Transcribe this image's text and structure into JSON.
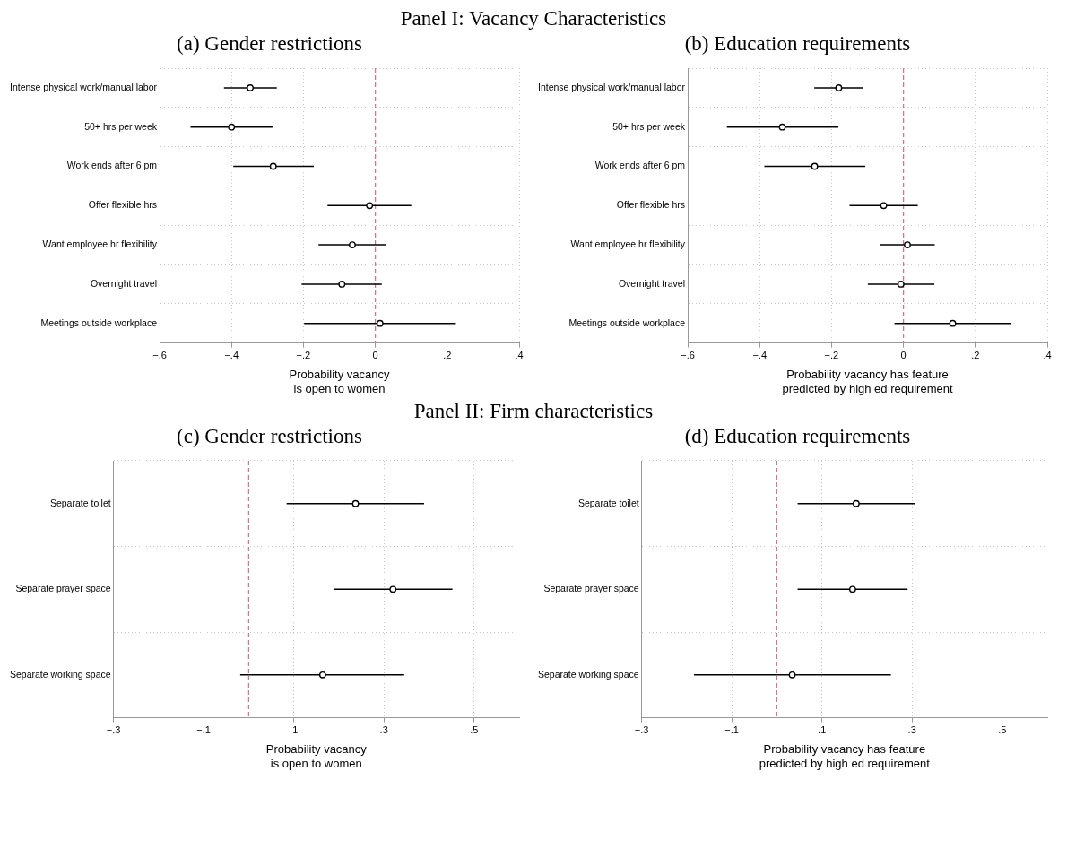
{
  "chart_data": [
    {
      "type": "scatter",
      "title": "Panel I: Vacancy Characteristics",
      "subtitle": "(a) Gender restrictions",
      "orientation": "horizontal",
      "xlabel": "Probability vacancy\nis open to women",
      "categories": [
        "Intense physical work/manual labor",
        "50+ hrs per week",
        "Work ends after 6 pm",
        "Offer flexible hrs",
        "Want employee hr flexibility",
        "Overnight travel",
        "Meetings outside workplace"
      ],
      "values": [
        -0.348,
        -0.4,
        -0.284,
        -0.016,
        -0.064,
        -0.093,
        0.013
      ],
      "errors": [
        [
          -0.421,
          -0.274
        ],
        [
          -0.514,
          -0.286
        ],
        [
          -0.395,
          -0.171
        ],
        [
          -0.133,
          0.1
        ],
        [
          -0.158,
          0.029
        ],
        [
          -0.205,
          0.018
        ],
        [
          -0.198,
          0.224
        ]
      ],
      "color": "#000000",
      "marker": "circle",
      "grid": true,
      "xlim": [
        -0.6,
        0.4
      ],
      "xticks": [
        {
          "value": -0.6,
          "label": "−.6"
        },
        {
          "value": -0.4,
          "label": "−.4"
        },
        {
          "value": -0.2,
          "label": "−.2"
        },
        0,
        {
          "value": 0.2,
          "label": ".2"
        },
        {
          "value": 0.4,
          "label": ".4"
        }
      ],
      "ref_lines": [
        {
          "axis": "x",
          "value": 0,
          "color": "#c9789c",
          "line_style": "dashed"
        }
      ]
    },
    {
      "type": "scatter",
      "title": "(b) Education requirements",
      "orientation": "horizontal",
      "xlabel": "Probability vacancy has feature\npredicted by high ed requirement",
      "categories": [
        "Intense physical work/manual labor",
        "50+ hrs per week",
        "Work ends after 6 pm",
        "Offer flexible hrs",
        "Want employee hr flexibility",
        "Overnight travel",
        "Meetings outside workplace"
      ],
      "values": [
        -0.18,
        -0.337,
        -0.247,
        -0.055,
        0.011,
        -0.007,
        0.137
      ],
      "errors": [
        [
          -0.248,
          -0.113
        ],
        [
          -0.491,
          -0.181
        ],
        [
          -0.387,
          -0.106
        ],
        [
          -0.15,
          0.04
        ],
        [
          -0.064,
          0.087
        ],
        [
          -0.099,
          0.086
        ],
        [
          -0.025,
          0.298
        ]
      ],
      "color": "#000000",
      "marker": "circle",
      "grid": true,
      "xlim": [
        -0.6,
        0.4
      ],
      "xticks": [
        {
          "value": -0.6,
          "label": "−.6"
        },
        {
          "value": -0.4,
          "label": "−.4"
        },
        {
          "value": -0.2,
          "label": "−.2"
        },
        0,
        {
          "value": 0.2,
          "label": ".2"
        },
        {
          "value": 0.4,
          "label": ".4"
        }
      ],
      "ref_lines": [
        {
          "axis": "x",
          "value": 0,
          "color": "#c9789c",
          "line_style": "dashed"
        }
      ]
    },
    {
      "type": "scatter",
      "title": "Panel II: Firm characteristics",
      "subtitle": "(c) Gender restrictions",
      "orientation": "horizontal",
      "xlabel": "Probability vacancy\nis open to women",
      "categories": [
        "Separate toilet",
        "Separate prayer space",
        "Separate working space"
      ],
      "values": [
        0.237,
        0.32,
        0.164
      ],
      "errors": [
        [
          0.084,
          0.389
        ],
        [
          0.188,
          0.452
        ],
        [
          -0.019,
          0.345
        ]
      ],
      "color": "#000000",
      "marker": "circle",
      "grid": true,
      "xlim": [
        -0.3,
        0.6
      ],
      "xticks": [
        {
          "value": -0.3,
          "label": "−.3"
        },
        {
          "value": -0.1,
          "label": "−.1"
        },
        {
          "value": 0.1,
          "label": ".1"
        },
        {
          "value": 0.3,
          "label": ".3"
        },
        {
          "value": 0.5,
          "label": ".5"
        }
      ],
      "ref_lines": [
        {
          "axis": "x",
          "value": 0,
          "color": "#c9789c",
          "line_style": "dashed"
        }
      ]
    },
    {
      "type": "scatter",
      "title": "(d) Education requirements",
      "orientation": "horizontal",
      "xlabel": "Probability vacancy has feature\npredicted by high ed requirement",
      "categories": [
        "Separate toilet",
        "Separate prayer space",
        "Separate working space"
      ],
      "values": [
        0.176,
        0.168,
        0.034
      ],
      "errors": [
        [
          0.046,
          0.307
        ],
        [
          0.046,
          0.29
        ],
        [
          -0.184,
          0.253
        ]
      ],
      "color": "#000000",
      "marker": "circle",
      "grid": true,
      "xlim": [
        -0.3,
        0.6
      ],
      "xticks": [
        {
          "value": -0.3,
          "label": "−.3"
        },
        {
          "value": -0.1,
          "label": "−.1"
        },
        {
          "value": 0.1,
          "label": ".1"
        },
        {
          "value": 0.3,
          "label": ".3"
        },
        {
          "value": 0.5,
          "label": ".5"
        }
      ],
      "ref_lines": [
        {
          "axis": "x",
          "value": 0,
          "color": "#c9789c",
          "line_style": "dashed"
        }
      ]
    }
  ]
}
